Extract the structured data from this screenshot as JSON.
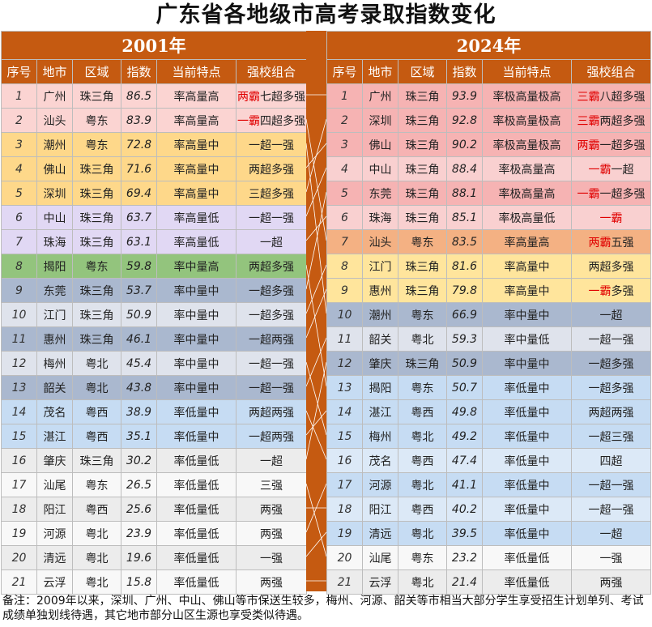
{
  "title": "广东省各地级市高考录取指数变化",
  "footnote": "备注：2009年以来，深圳、广州、中山、佛山等市保送生较多，梅州、河源、韶关等市相当大部分学生享受招生计划单列、考试成绩单独划线待遇，其它地市部分山区生源也享受类似待遇。",
  "headers": [
    "序号",
    "地市",
    "区域",
    "指数",
    "当前特点",
    "强校组合"
  ],
  "table_2001": {
    "year": "2001年",
    "rows": [
      {
        "no": "1",
        "city": "广州",
        "region": "珠三角",
        "index": "86.5",
        "feature": "率高量高",
        "combo_red": "两霸",
        "combo": "七超多强",
        "bg": "#fbd4d2"
      },
      {
        "no": "2",
        "city": "汕头",
        "region": "粤东",
        "index": "83.9",
        "feature": "率高量高",
        "combo_red": "一霸",
        "combo": "四超多强",
        "bg": "#fbd4d2"
      },
      {
        "no": "3",
        "city": "潮州",
        "region": "粤东",
        "index": "72.8",
        "feature": "率高量中",
        "combo_red": "",
        "combo": "一超一强",
        "bg": "#fed88a"
      },
      {
        "no": "4",
        "city": "佛山",
        "region": "珠三角",
        "index": "71.6",
        "feature": "率高量中",
        "combo_red": "",
        "combo": "两超多强",
        "bg": "#fed88a"
      },
      {
        "no": "5",
        "city": "深圳",
        "region": "珠三角",
        "index": "69.4",
        "feature": "率高量中",
        "combo_red": "",
        "combo": "三超多强",
        "bg": "#fed88a"
      },
      {
        "no": "6",
        "city": "中山",
        "region": "珠三角",
        "index": "63.7",
        "feature": "率高量低",
        "combo_red": "",
        "combo": "一超一强",
        "bg": "#e1d8f4"
      },
      {
        "no": "7",
        "city": "珠海",
        "region": "珠三角",
        "index": "63.1",
        "feature": "率高量低",
        "combo_red": "",
        "combo": "一超",
        "bg": "#e1d8f4"
      },
      {
        "no": "8",
        "city": "揭阳",
        "region": "粤东",
        "index": "59.8",
        "feature": "率中量高",
        "combo_red": "",
        "combo": "两超多强",
        "bg": "#93c47d"
      },
      {
        "no": "9",
        "city": "东莞",
        "region": "珠三角",
        "index": "53.7",
        "feature": "率中量中",
        "combo_red": "",
        "combo": "一超多强",
        "bg": "#aab8cf"
      },
      {
        "no": "10",
        "city": "江门",
        "region": "珠三角",
        "index": "50.9",
        "feature": "率中量中",
        "combo_red": "",
        "combo": "一超多强",
        "bg": "#dfe3ec"
      },
      {
        "no": "11",
        "city": "惠州",
        "region": "珠三角",
        "index": "46.1",
        "feature": "率中量中",
        "combo_red": "",
        "combo": "一超两强",
        "bg": "#aab8cf"
      },
      {
        "no": "12",
        "city": "梅州",
        "region": "粤北",
        "index": "45.4",
        "feature": "率中量中",
        "combo_red": "",
        "combo": "一超一强",
        "bg": "#dfe3ec"
      },
      {
        "no": "13",
        "city": "韶关",
        "region": "粤北",
        "index": "43.8",
        "feature": "率中量中",
        "combo_red": "",
        "combo": "一超一强",
        "bg": "#aab8cf"
      },
      {
        "no": "14",
        "city": "茂名",
        "region": "粤西",
        "index": "38.9",
        "feature": "率低量中",
        "combo_red": "",
        "combo": "两超两强",
        "bg": "#c6dcf3"
      },
      {
        "no": "15",
        "city": "湛江",
        "region": "粤西",
        "index": "35.1",
        "feature": "率低量中",
        "combo_red": "",
        "combo": "一超两强",
        "bg": "#c6dcf3"
      },
      {
        "no": "16",
        "city": "肇庆",
        "region": "珠三角",
        "index": "30.2",
        "feature": "率低量低",
        "combo_red": "",
        "combo": "一超",
        "bg": "#ececec"
      },
      {
        "no": "17",
        "city": "汕尾",
        "region": "粤东",
        "index": "26.5",
        "feature": "率低量低",
        "combo_red": "",
        "combo": "三强",
        "bg": "#f8f8f8"
      },
      {
        "no": "18",
        "city": "阳江",
        "region": "粤西",
        "index": "25.6",
        "feature": "率低量低",
        "combo_red": "",
        "combo": "两强",
        "bg": "#ececec"
      },
      {
        "no": "19",
        "city": "河源",
        "region": "粤北",
        "index": "23.9",
        "feature": "率低量低",
        "combo_red": "",
        "combo": "两强",
        "bg": "#f8f8f8"
      },
      {
        "no": "20",
        "city": "清远",
        "region": "粤北",
        "index": "19.6",
        "feature": "率低量低",
        "combo_red": "",
        "combo": "一强",
        "bg": "#ececec"
      },
      {
        "no": "21",
        "city": "云浮",
        "region": "粤北",
        "index": "15.8",
        "feature": "率低量低",
        "combo_red": "",
        "combo": "两强",
        "bg": "#f8f8f8"
      }
    ]
  },
  "table_2024": {
    "year": "2024年",
    "rows": [
      {
        "no": "1",
        "city": "广州",
        "region": "珠三角",
        "index": "93.9",
        "feature": "率极高量极高",
        "combo_red": "三霸",
        "combo": "八超多强",
        "bg": "#f6b3b3"
      },
      {
        "no": "2",
        "city": "深圳",
        "region": "珠三角",
        "index": "92.8",
        "feature": "率极高量极高",
        "combo_red": "三霸",
        "combo": "两超多强",
        "bg": "#f6b3b3"
      },
      {
        "no": "3",
        "city": "佛山",
        "region": "珠三角",
        "index": "90.2",
        "feature": "率极高量极高",
        "combo_red": "两霸",
        "combo": "一超多强",
        "bg": "#f6b3b3"
      },
      {
        "no": "4",
        "city": "中山",
        "region": "珠三角",
        "index": "88.4",
        "feature": "率极高量高",
        "combo_red": "一霸",
        "combo": "一超",
        "bg": "#f9d0d0"
      },
      {
        "no": "5",
        "city": "东莞",
        "region": "珠三角",
        "index": "88.1",
        "feature": "率极高量高",
        "combo_red": "一霸",
        "combo": "一超多强",
        "bg": "#f6b3b3"
      },
      {
        "no": "6",
        "city": "珠海",
        "region": "珠三角",
        "index": "85.1",
        "feature": "率极高量低",
        "combo_red": "一霸",
        "combo": "",
        "bg": "#f9d0d0"
      },
      {
        "no": "7",
        "city": "汕头",
        "region": "粤东",
        "index": "83.5",
        "feature": "率高量高",
        "combo_red": "两霸",
        "combo": "五强",
        "bg": "#f4b183"
      },
      {
        "no": "8",
        "city": "江门",
        "region": "珠三角",
        "index": "81.6",
        "feature": "率高量中",
        "combo_red": "",
        "combo": "两超多强",
        "bg": "#ffe59c"
      },
      {
        "no": "9",
        "city": "惠州",
        "region": "珠三角",
        "index": "79.8",
        "feature": "率高量中",
        "combo_red": "一霸",
        "combo": "多强",
        "bg": "#ffe59c"
      },
      {
        "no": "10",
        "city": "潮州",
        "region": "粤东",
        "index": "66.9",
        "feature": "率中量中",
        "combo_red": "",
        "combo": "一超",
        "bg": "#aab8cf"
      },
      {
        "no": "11",
        "city": "韶关",
        "region": "粤北",
        "index": "59.3",
        "feature": "率中量低",
        "combo_red": "",
        "combo": "一超一强",
        "bg": "#dfe3ec"
      },
      {
        "no": "12",
        "city": "肇庆",
        "region": "珠三角",
        "index": "50.9",
        "feature": "率中量中",
        "combo_red": "",
        "combo": "一超多强",
        "bg": "#aab8cf"
      },
      {
        "no": "13",
        "city": "揭阳",
        "region": "粤东",
        "index": "50.7",
        "feature": "率低量中",
        "combo_red": "",
        "combo": "一超多强",
        "bg": "#c6dcf3"
      },
      {
        "no": "14",
        "city": "湛江",
        "region": "粤西",
        "index": "49.8",
        "feature": "率低量中",
        "combo_red": "",
        "combo": "两超两强",
        "bg": "#c6dcf3"
      },
      {
        "no": "15",
        "city": "梅州",
        "region": "粤北",
        "index": "49.2",
        "feature": "率低量中",
        "combo_red": "",
        "combo": "一超三强",
        "bg": "#c6dcf3"
      },
      {
        "no": "16",
        "city": "茂名",
        "region": "粤西",
        "index": "47.4",
        "feature": "率低量中",
        "combo_red": "",
        "combo": "四超",
        "bg": "#dce9f7"
      },
      {
        "no": "17",
        "city": "河源",
        "region": "粤北",
        "index": "41.1",
        "feature": "率低量中",
        "combo_red": "",
        "combo": "一超一强",
        "bg": "#c6dcf3"
      },
      {
        "no": "18",
        "city": "阳江",
        "region": "粤西",
        "index": "40.2",
        "feature": "率低量中",
        "combo_red": "",
        "combo": "一超一强",
        "bg": "#dce9f7"
      },
      {
        "no": "19",
        "city": "清远",
        "region": "粤北",
        "index": "39.5",
        "feature": "率低量中",
        "combo_red": "",
        "combo": "一超",
        "bg": "#c6dcf3"
      },
      {
        "no": "20",
        "city": "汕尾",
        "region": "粤东",
        "index": "23.2",
        "feature": "率低量低",
        "combo_red": "",
        "combo": "一强",
        "bg": "#f8f8f8"
      },
      {
        "no": "21",
        "city": "云浮",
        "region": "粤北",
        "index": "21.4",
        "feature": "率低量低",
        "combo_red": "",
        "combo": "两强",
        "bg": "#ececec"
      }
    ]
  }
}
